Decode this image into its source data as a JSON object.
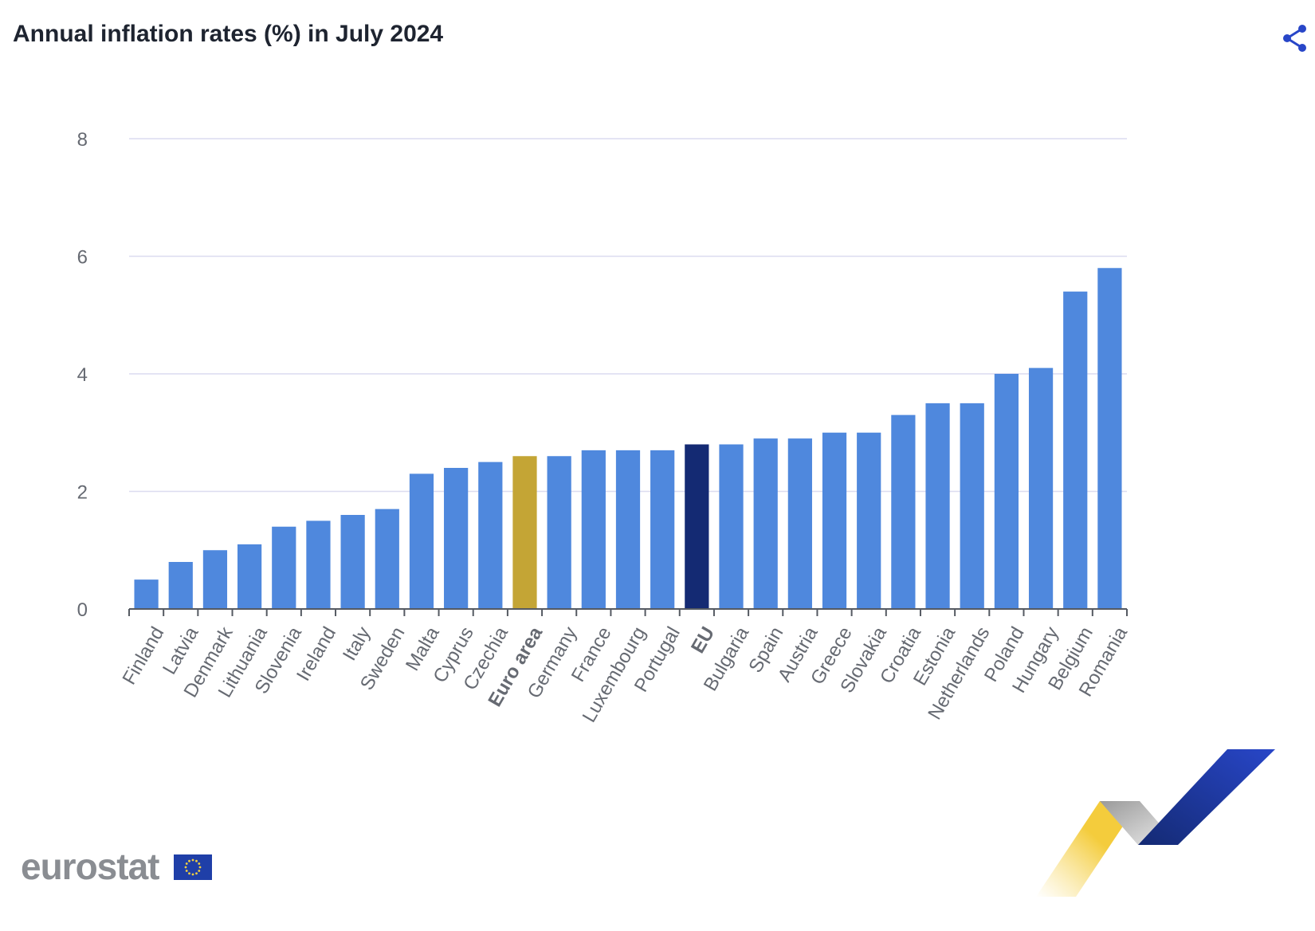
{
  "header": {
    "title": "Annual inflation rates (%) in July 2024",
    "share_icon": "share-icon"
  },
  "colors": {
    "default_bar": "#4f88dd",
    "euro_area_bar": "#c4a535",
    "eu_bar": "#142a73",
    "grid": "#dcdcf0",
    "text": "#666a72"
  },
  "chart_data": {
    "type": "bar",
    "title": "Annual inflation rates (%) in July 2024",
    "xlabel": "",
    "ylabel": "",
    "ylim": [
      0,
      8
    ],
    "yticks": [
      0,
      2,
      4,
      6,
      8
    ],
    "grid": true,
    "categories": [
      "Finland",
      "Latvia",
      "Denmark",
      "Lithuania",
      "Slovenia",
      "Ireland",
      "Italy",
      "Sweden",
      "Malta",
      "Cyprus",
      "Czechia",
      "Euro area",
      "Germany",
      "France",
      "Luxembourg",
      "Portugal",
      "EU",
      "Bulgaria",
      "Spain",
      "Austria",
      "Greece",
      "Slovakia",
      "Croatia",
      "Estonia",
      "Netherlands",
      "Poland",
      "Hungary",
      "Belgium",
      "Romania"
    ],
    "values": [
      0.5,
      0.8,
      1.0,
      1.1,
      1.4,
      1.5,
      1.6,
      1.7,
      2.3,
      2.4,
      2.5,
      2.6,
      2.6,
      2.7,
      2.7,
      2.7,
      2.8,
      2.8,
      2.9,
      2.9,
      3.0,
      3.0,
      3.3,
      3.5,
      3.5,
      4.0,
      4.1,
      5.4,
      5.8
    ],
    "highlight": {
      "Euro area": "#c4a535",
      "EU": "#142a73"
    },
    "bold_categories": [
      "Euro area",
      "EU"
    ]
  },
  "footer": {
    "logo_text": "eurostat",
    "logo_icon": "eu-flag-icon",
    "decoration_icon": "eurostat-swoosh-icon"
  }
}
